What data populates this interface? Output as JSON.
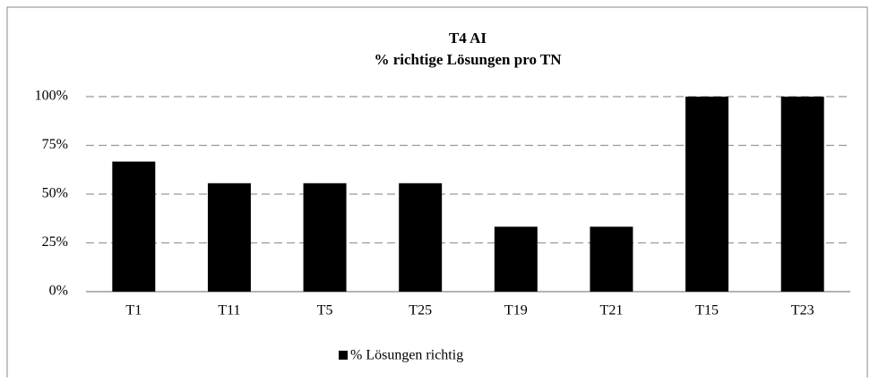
{
  "chart_data": {
    "type": "bar",
    "title": "T4 AI",
    "subtitle": "% richtige Lösungen pro TN",
    "categories": [
      "T1",
      "T11",
      "T5",
      "T25",
      "T19",
      "T21",
      "T15",
      "T23"
    ],
    "series": [
      {
        "name": "% Lösungen richtig",
        "color": "#000000",
        "values": [
          66.7,
          55.6,
          55.6,
          55.6,
          33.3,
          33.3,
          100,
          100
        ]
      }
    ],
    "ylim": [
      0,
      100
    ],
    "yticks": [
      {
        "value": 0,
        "label": "0%"
      },
      {
        "value": 25,
        "label": "25%"
      },
      {
        "value": 50,
        "label": "50%"
      },
      {
        "value": 75,
        "label": "75%"
      },
      {
        "value": 100,
        "label": "100%"
      }
    ],
    "grid": true,
    "legend": "bottom"
  }
}
